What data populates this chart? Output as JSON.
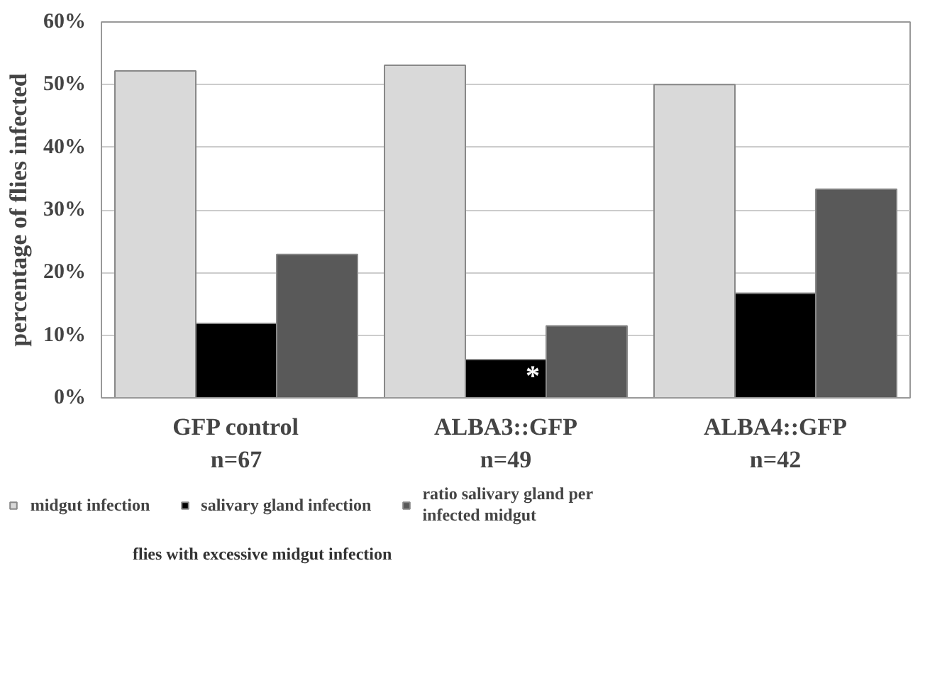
{
  "chart_data": {
    "type": "bar",
    "ylabel": "percentage of flies infected",
    "categories": [
      "GFP control\nn=67",
      "ALBA3::GFP\nn=49",
      "ALBA4::GFP\nn=42"
    ],
    "series": [
      {
        "name": "midgut infection",
        "color": "#d9d9d9",
        "values": [
          52.2,
          53.1,
          50.0
        ]
      },
      {
        "name": "salivary gland infection",
        "color": "#000000",
        "values": [
          11.9,
          6.1,
          16.7
        ]
      },
      {
        "name": "ratio salivary gland per infected midgut",
        "color": "#595959",
        "values": [
          22.9,
          11.5,
          33.3
        ]
      }
    ],
    "ylim": [
      0,
      60
    ],
    "yticks": [
      {
        "value": 0,
        "label": "0%"
      },
      {
        "value": 10,
        "label": "10%"
      },
      {
        "value": 20,
        "label": "20%"
      },
      {
        "value": 30,
        "label": "30%"
      },
      {
        "value": 40,
        "label": "40%"
      },
      {
        "value": 50,
        "label": "50%"
      },
      {
        "value": 60,
        "label": "60%"
      }
    ],
    "grid": "y",
    "legend": "bottom",
    "annotations": [
      "*",
      "flies with excessive midgut infection"
    ]
  }
}
